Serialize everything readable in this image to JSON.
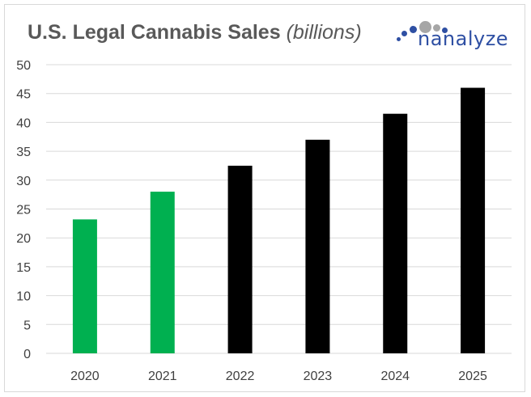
{
  "header": {
    "title_main": "U.S. Legal Cannabis Sales",
    "title_unit": "(billions)",
    "logo_text": "nanalyze"
  },
  "colors": {
    "actual": "#00b050",
    "forecast": "#000000",
    "grid": "#d9d9d9",
    "logo_blue": "#2e4fa3",
    "logo_gray": "#a6a6a6"
  },
  "chart_data": {
    "type": "bar",
    "title": "U.S. Legal Cannabis Sales (billions)",
    "xlabel": "",
    "ylabel": "",
    "categories": [
      "2020",
      "2021",
      "2022",
      "2023",
      "2024",
      "2025"
    ],
    "values": [
      23.2,
      28.0,
      32.5,
      37.0,
      41.5,
      46.0
    ],
    "bar_status": [
      "actual",
      "actual",
      "forecast",
      "forecast",
      "forecast",
      "forecast"
    ],
    "ylim": [
      0,
      50
    ],
    "yticks": [
      0,
      5,
      10,
      15,
      20,
      25,
      30,
      35,
      40,
      45,
      50
    ],
    "grid": true,
    "legend": "none"
  }
}
